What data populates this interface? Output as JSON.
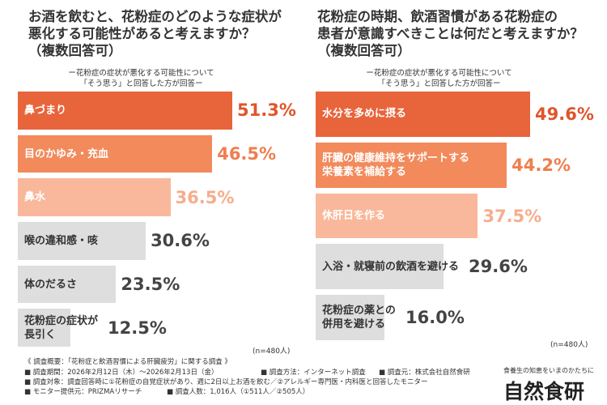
{
  "chart_data": [
    {
      "type": "bar",
      "orientation": "horizontal",
      "title": "お酒を飲むと、花粉症のどのような症状が\n悪化する可能性があると考えますか？\n（複数回答可）",
      "subtitle": "ー花粉症の症状が悪化する可能性について\n「そう思う」と回答した方が回答ー",
      "categories": [
        "鼻づまり",
        "目のかゆみ・充血",
        "鼻水",
        "喉の違和感・咳",
        "体のだるさ",
        "花粉症の症状が\n長引く"
      ],
      "values": [
        51.3,
        46.5,
        36.5,
        30.6,
        23.5,
        12.5
      ],
      "value_labels": [
        "51.3%",
        "46.5%",
        "36.5%",
        "30.6%",
        "23.5%",
        "12.5%"
      ],
      "colors": [
        "#e8643a",
        "#f28a5c",
        "#f9b89b",
        "#dedede",
        "#dedede",
        "#dedede"
      ],
      "label_colors": [
        "#ffffff",
        "#ffffff",
        "#ffffff",
        "#333333",
        "#333333",
        "#333333"
      ],
      "value_colors": [
        "#e0552a",
        "#f07e4e",
        "#f6ad8c",
        "#444444",
        "#444444",
        "#444444"
      ],
      "note": "(n=480人)"
    },
    {
      "type": "bar",
      "orientation": "horizontal",
      "title": "花粉症の時期、飲酒習慣がある花粉症の\n患者が意識すべきことは何だと考えますか？\n（複数回答可）",
      "subtitle": "ー花粉症の症状が悪化する可能性について\n「そう思う」と回答した方が回答ー",
      "categories": [
        "水分を多めに摂る",
        "肝臓の健康維持をサポートする\n栄養素を補給する",
        "休肝日を作る",
        "入浴・就寝前の飲酒を避ける",
        "花粉症の薬との\n併用を避ける"
      ],
      "values": [
        49.6,
        44.2,
        37.5,
        29.6,
        16.0
      ],
      "value_labels": [
        "49.6%",
        "44.2%",
        "37.5%",
        "29.6%",
        "16.0%"
      ],
      "colors": [
        "#e8643a",
        "#f28a5c",
        "#f9b89b",
        "#dedede",
        "#dedede"
      ],
      "label_colors": [
        "#ffffff",
        "#ffffff",
        "#ffffff",
        "#333333",
        "#333333"
      ],
      "value_colors": [
        "#e0552a",
        "#f07e4e",
        "#f6ad8c",
        "#444444",
        "#444444"
      ],
      "note": "(n=480人)"
    }
  ],
  "footer": {
    "heading": "《 調査概要：「花粉症と飲酒習慣による肝臓疲労」に関する調査 》",
    "rows": [
      [
        "■ 調査期間：2026年2月12日（木）〜2026年2月13日（金）",
        "■ 調査方法：インターネット調査",
        "■ 調査元：株式会社自然食研"
      ],
      [
        "■ 調査対象：調査回答時に①花粉症の自覚症状があり、週に2日以上お酒を飲む／②アレルギー専門医・内科医と回答したモニター"
      ],
      [
        "■ モニター提供元：PRIZMAリサーチ",
        "■ 調査人数：1,016人（①511人／②505人）"
      ]
    ],
    "tagline": "食養生の知恵をいまのかたちに",
    "brand": "自然食研"
  }
}
